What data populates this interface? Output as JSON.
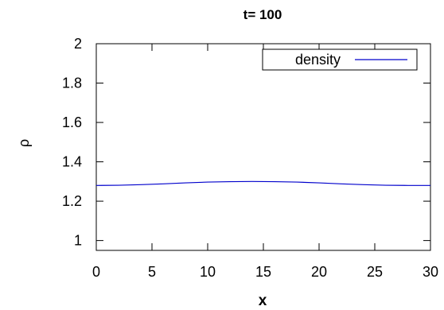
{
  "chart_data": {
    "type": "line",
    "title": "t= 100",
    "xlabel": "x",
    "ylabel": "ρ",
    "xlim": [
      0,
      30
    ],
    "ylim": [
      0.95,
      2.0
    ],
    "x_ticks": [
      "0",
      "5",
      "10",
      "15",
      "20",
      "25",
      "30"
    ],
    "y_ticks": [
      "1",
      "1.2",
      "1.4",
      "1.6",
      "1.8",
      "2"
    ],
    "grid": false,
    "legend": {
      "position": "top-right",
      "entries": [
        "density"
      ]
    },
    "series": [
      {
        "name": "density",
        "color": "#0000cc",
        "x": [
          0,
          2,
          4,
          6,
          8,
          10,
          12,
          14,
          16,
          18,
          20,
          22,
          24,
          26,
          28,
          30
        ],
        "y": [
          1.28,
          1.281,
          1.284,
          1.288,
          1.293,
          1.297,
          1.299,
          1.3,
          1.299,
          1.297,
          1.293,
          1.288,
          1.284,
          1.281,
          1.28,
          1.28
        ]
      }
    ]
  }
}
